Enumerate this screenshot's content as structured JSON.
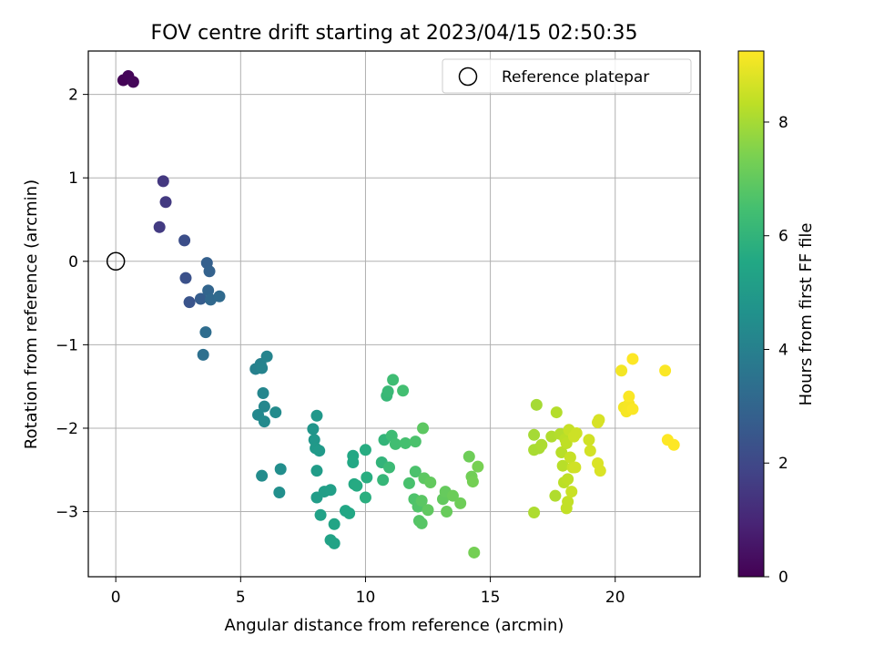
{
  "chart_data": {
    "type": "scatter",
    "title": "FOV centre drift starting at 2023/04/15 02:50:35",
    "xlabel": "Angular distance from reference (arcmin)",
    "ylabel": "Rotation from reference (arcmin)",
    "xlim": [
      -1.1,
      23.4
    ],
    "ylim": [
      -3.78,
      2.52
    ],
    "xticks": [
      0,
      5,
      10,
      15,
      20
    ],
    "yticks": [
      -3,
      -2,
      -1,
      0,
      1,
      2
    ],
    "xtick_labels": [
      "0",
      "5",
      "10",
      "15",
      "20"
    ],
    "ytick_labels": [
      "−3",
      "−2",
      "−1",
      "0",
      "1",
      "2"
    ],
    "grid": true,
    "legend": {
      "position": "top-right",
      "label": "Reference platepar",
      "marker": "open-circle"
    },
    "reference_point": {
      "x": 0,
      "y": 0
    },
    "colorbar": {
      "label": "Hours from first FF file",
      "colormap": "viridis",
      "range": [
        0,
        9.25
      ],
      "ticks": [
        0,
        2,
        4,
        6,
        8
      ],
      "tick_labels": [
        "0",
        "2",
        "4",
        "6",
        "8"
      ]
    },
    "points": [
      {
        "x": 0.3,
        "y": 2.17,
        "c": 0.05
      },
      {
        "x": 0.5,
        "y": 2.22,
        "c": 0.1
      },
      {
        "x": 0.7,
        "y": 2.15,
        "c": 0.15
      },
      {
        "x": 1.9,
        "y": 0.96,
        "c": 1.5
      },
      {
        "x": 2.0,
        "y": 0.71,
        "c": 1.55
      },
      {
        "x": 1.75,
        "y": 0.41,
        "c": 1.6
      },
      {
        "x": 2.75,
        "y": 0.25,
        "c": 2.2
      },
      {
        "x": 2.8,
        "y": -0.2,
        "c": 2.3
      },
      {
        "x": 2.95,
        "y": -0.49,
        "c": 2.4
      },
      {
        "x": 3.4,
        "y": -0.45,
        "c": 2.7
      },
      {
        "x": 3.65,
        "y": -0.02,
        "c": 2.8
      },
      {
        "x": 3.75,
        "y": -0.12,
        "c": 2.9
      },
      {
        "x": 3.7,
        "y": -0.35,
        "c": 3.0
      },
      {
        "x": 3.8,
        "y": -0.46,
        "c": 3.1
      },
      {
        "x": 4.15,
        "y": -0.42,
        "c": 3.2
      },
      {
        "x": 3.6,
        "y": -0.85,
        "c": 3.3
      },
      {
        "x": 3.5,
        "y": -1.12,
        "c": 3.4
      },
      {
        "x": 5.6,
        "y": -1.29,
        "c": 4.0
      },
      {
        "x": 5.8,
        "y": -1.23,
        "c": 4.05
      },
      {
        "x": 5.85,
        "y": -1.28,
        "c": 4.1
      },
      {
        "x": 6.05,
        "y": -1.14,
        "c": 4.15
      },
      {
        "x": 5.9,
        "y": -1.58,
        "c": 4.2
      },
      {
        "x": 5.95,
        "y": -1.74,
        "c": 4.25
      },
      {
        "x": 5.7,
        "y": -1.84,
        "c": 4.3
      },
      {
        "x": 5.95,
        "y": -1.92,
        "c": 4.35
      },
      {
        "x": 6.4,
        "y": -1.81,
        "c": 4.4
      },
      {
        "x": 5.85,
        "y": -2.57,
        "c": 4.45
      },
      {
        "x": 6.6,
        "y": -2.49,
        "c": 4.5
      },
      {
        "x": 6.55,
        "y": -2.77,
        "c": 4.55
      },
      {
        "x": 7.9,
        "y": -2.01,
        "c": 4.8
      },
      {
        "x": 7.95,
        "y": -2.14,
        "c": 4.85
      },
      {
        "x": 8.05,
        "y": -1.85,
        "c": 4.9
      },
      {
        "x": 8.0,
        "y": -2.24,
        "c": 4.95
      },
      {
        "x": 8.15,
        "y": -2.27,
        "c": 5.0
      },
      {
        "x": 8.05,
        "y": -2.51,
        "c": 5.05
      },
      {
        "x": 8.05,
        "y": -2.83,
        "c": 5.1
      },
      {
        "x": 8.35,
        "y": -2.76,
        "c": 5.15
      },
      {
        "x": 8.6,
        "y": -2.74,
        "c": 5.2
      },
      {
        "x": 8.2,
        "y": -3.04,
        "c": 5.25
      },
      {
        "x": 8.6,
        "y": -3.34,
        "c": 5.3
      },
      {
        "x": 8.75,
        "y": -3.38,
        "c": 5.35
      },
      {
        "x": 8.75,
        "y": -3.15,
        "c": 5.4
      },
      {
        "x": 9.2,
        "y": -2.99,
        "c": 5.45
      },
      {
        "x": 9.35,
        "y": -3.02,
        "c": 5.5
      },
      {
        "x": 9.5,
        "y": -2.33,
        "c": 5.5
      },
      {
        "x": 9.5,
        "y": -2.41,
        "c": 5.55
      },
      {
        "x": 9.55,
        "y": -2.67,
        "c": 5.6
      },
      {
        "x": 9.65,
        "y": -2.69,
        "c": 5.65
      },
      {
        "x": 10.0,
        "y": -2.26,
        "c": 5.7
      },
      {
        "x": 10.05,
        "y": -2.59,
        "c": 5.75
      },
      {
        "x": 10.0,
        "y": -2.83,
        "c": 5.8
      },
      {
        "x": 10.65,
        "y": -2.41,
        "c": 6.0
      },
      {
        "x": 10.75,
        "y": -2.14,
        "c": 6.05
      },
      {
        "x": 10.7,
        "y": -2.62,
        "c": 6.1
      },
      {
        "x": 10.85,
        "y": -1.61,
        "c": 6.15
      },
      {
        "x": 10.9,
        "y": -1.56,
        "c": 6.2
      },
      {
        "x": 10.95,
        "y": -2.47,
        "c": 6.25
      },
      {
        "x": 11.05,
        "y": -2.09,
        "c": 6.3
      },
      {
        "x": 11.1,
        "y": -1.42,
        "c": 6.35
      },
      {
        "x": 11.2,
        "y": -2.19,
        "c": 6.4
      },
      {
        "x": 11.5,
        "y": -1.55,
        "c": 6.45
      },
      {
        "x": 11.6,
        "y": -2.18,
        "c": 6.5
      },
      {
        "x": 11.75,
        "y": -2.66,
        "c": 6.55
      },
      {
        "x": 12.0,
        "y": -2.16,
        "c": 6.6
      },
      {
        "x": 12.0,
        "y": -2.52,
        "c": 6.6
      },
      {
        "x": 11.95,
        "y": -2.85,
        "c": 6.65
      },
      {
        "x": 12.1,
        "y": -2.94,
        "c": 6.7
      },
      {
        "x": 12.15,
        "y": -3.11,
        "c": 6.75
      },
      {
        "x": 12.25,
        "y": -3.14,
        "c": 6.8
      },
      {
        "x": 12.25,
        "y": -2.87,
        "c": 6.85
      },
      {
        "x": 12.3,
        "y": -2.0,
        "c": 6.9
      },
      {
        "x": 12.35,
        "y": -2.6,
        "c": 6.9
      },
      {
        "x": 12.5,
        "y": -2.98,
        "c": 6.95
      },
      {
        "x": 12.6,
        "y": -2.65,
        "c": 7.0
      },
      {
        "x": 13.1,
        "y": -2.85,
        "c": 7.0
      },
      {
        "x": 13.2,
        "y": -2.76,
        "c": 7.05
      },
      {
        "x": 13.25,
        "y": -3.0,
        "c": 7.1
      },
      {
        "x": 13.5,
        "y": -2.81,
        "c": 7.15
      },
      {
        "x": 13.8,
        "y": -2.9,
        "c": 7.2
      },
      {
        "x": 14.15,
        "y": -2.34,
        "c": 7.2
      },
      {
        "x": 14.25,
        "y": -2.58,
        "c": 7.25
      },
      {
        "x": 14.3,
        "y": -2.64,
        "c": 7.3
      },
      {
        "x": 14.5,
        "y": -2.46,
        "c": 7.35
      },
      {
        "x": 14.35,
        "y": -3.49,
        "c": 7.3
      },
      {
        "x": 16.75,
        "y": -2.08,
        "c": 8.0
      },
      {
        "x": 16.85,
        "y": -1.72,
        "c": 8.0
      },
      {
        "x": 16.75,
        "y": -2.26,
        "c": 8.05
      },
      {
        "x": 16.95,
        "y": -2.24,
        "c": 8.05
      },
      {
        "x": 17.05,
        "y": -2.2,
        "c": 8.1
      },
      {
        "x": 16.75,
        "y": -3.01,
        "c": 8.1
      },
      {
        "x": 17.45,
        "y": -2.1,
        "c": 8.15
      },
      {
        "x": 17.6,
        "y": -2.81,
        "c": 8.15
      },
      {
        "x": 17.65,
        "y": -1.81,
        "c": 8.2
      },
      {
        "x": 17.8,
        "y": -2.07,
        "c": 8.2
      },
      {
        "x": 17.85,
        "y": -2.29,
        "c": 8.25
      },
      {
        "x": 17.9,
        "y": -2.45,
        "c": 8.25
      },
      {
        "x": 17.95,
        "y": -2.65,
        "c": 8.3
      },
      {
        "x": 18.0,
        "y": -2.13,
        "c": 8.3
      },
      {
        "x": 18.05,
        "y": -2.18,
        "c": 8.35
      },
      {
        "x": 18.1,
        "y": -2.61,
        "c": 8.35
      },
      {
        "x": 18.1,
        "y": -2.88,
        "c": 8.4
      },
      {
        "x": 18.05,
        "y": -2.96,
        "c": 8.4
      },
      {
        "x": 18.15,
        "y": -2.02,
        "c": 8.45
      },
      {
        "x": 18.2,
        "y": -2.35,
        "c": 8.45
      },
      {
        "x": 18.25,
        "y": -2.76,
        "c": 8.5
      },
      {
        "x": 18.3,
        "y": -2.47,
        "c": 8.5
      },
      {
        "x": 18.35,
        "y": -2.1,
        "c": 8.55
      },
      {
        "x": 18.45,
        "y": -2.06,
        "c": 8.55
      },
      {
        "x": 18.4,
        "y": -2.47,
        "c": 8.6
      },
      {
        "x": 18.95,
        "y": -2.14,
        "c": 8.6
      },
      {
        "x": 19.0,
        "y": -2.27,
        "c": 8.65
      },
      {
        "x": 19.3,
        "y": -1.93,
        "c": 8.7
      },
      {
        "x": 19.35,
        "y": -1.9,
        "c": 8.7
      },
      {
        "x": 19.3,
        "y": -2.42,
        "c": 8.75
      },
      {
        "x": 19.4,
        "y": -2.51,
        "c": 8.75
      },
      {
        "x": 20.25,
        "y": -1.31,
        "c": 9.1
      },
      {
        "x": 20.35,
        "y": -1.75,
        "c": 9.1
      },
      {
        "x": 20.45,
        "y": -1.8,
        "c": 9.15
      },
      {
        "x": 20.55,
        "y": -1.71,
        "c": 9.15
      },
      {
        "x": 20.55,
        "y": -1.62,
        "c": 9.2
      },
      {
        "x": 20.7,
        "y": -1.77,
        "c": 9.2
      },
      {
        "x": 20.7,
        "y": -1.17,
        "c": 9.25
      },
      {
        "x": 22.0,
        "y": -1.31,
        "c": 9.2
      },
      {
        "x": 22.1,
        "y": -2.14,
        "c": 9.25
      },
      {
        "x": 22.35,
        "y": -2.2,
        "c": 9.25
      }
    ]
  }
}
